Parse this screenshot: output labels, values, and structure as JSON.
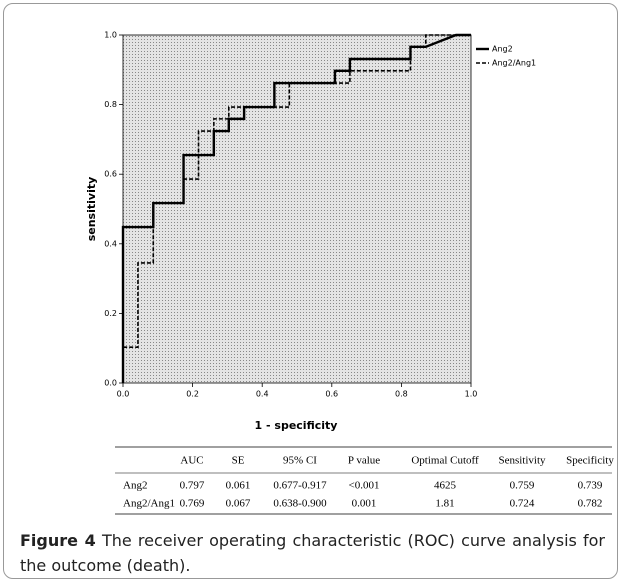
{
  "chart_data": {
    "type": "line",
    "xlabel": "1 - specificity",
    "ylabel": "sensitivity",
    "xlim": [
      0,
      1
    ],
    "ylim": [
      0,
      1
    ],
    "xticks": [
      {
        "value": 0,
        "label": "0.0"
      },
      {
        "value": 0.2,
        "label": "0.2"
      },
      {
        "value": 0.4,
        "label": "0.4"
      },
      {
        "value": 0.6,
        "label": "0.6"
      },
      {
        "value": 0.8,
        "label": "0.8"
      },
      {
        "value": 1,
        "label": "1.0"
      }
    ],
    "yticks": [
      {
        "value": 0,
        "label": "0.0"
      },
      {
        "value": 0.2,
        "label": "0.2"
      },
      {
        "value": 0.4,
        "label": "0.4"
      },
      {
        "value": 0.6,
        "label": "0.6"
      },
      {
        "value": 0.8,
        "label": "0.8"
      },
      {
        "value": 1,
        "label": "1.0"
      }
    ],
    "legend": "right",
    "series": [
      {
        "name": "Ang2",
        "color": "#000000",
        "dashed": false,
        "x": [
          0,
          0,
          0.087,
          0.087,
          0.174,
          0.174,
          0.261,
          0.261,
          0.304,
          0.304,
          0.348,
          0.348,
          0.435,
          0.435,
          0.609,
          0.609,
          0.652,
          0.652,
          0.826,
          0.826,
          0.87,
          0.957,
          1.0
        ],
        "values": [
          0,
          0.448,
          0.448,
          0.517,
          0.517,
          0.655,
          0.655,
          0.724,
          0.724,
          0.759,
          0.759,
          0.793,
          0.793,
          0.862,
          0.862,
          0.897,
          0.897,
          0.931,
          0.931,
          0.966,
          0.966,
          1.0,
          1.0
        ]
      },
      {
        "name": "Ang2/Ang1",
        "color": "#000000",
        "dashed": true,
        "x": [
          0,
          0,
          0.043,
          0.043,
          0.087,
          0.087,
          0.174,
          0.174,
          0.217,
          0.217,
          0.261,
          0.261,
          0.304,
          0.304,
          0.478,
          0.478,
          0.652,
          0.652,
          0.826,
          0.826,
          0.87,
          0.87,
          1.0
        ],
        "values": [
          0,
          0.103,
          0.103,
          0.345,
          0.345,
          0.517,
          0.517,
          0.586,
          0.586,
          0.724,
          0.724,
          0.759,
          0.759,
          0.793,
          0.793,
          0.862,
          0.862,
          0.897,
          0.897,
          0.966,
          0.966,
          1.0,
          1.0
        ]
      }
    ]
  },
  "table": {
    "header": [
      "AUC",
      "SE",
      "95% CI",
      "P value",
      "Optimal Cutoff",
      "Sensitivity",
      "Specificity"
    ],
    "rows": [
      [
        "Ang2",
        "0.797",
        "0.061",
        "0.677-0.917",
        "<0.001",
        "4625",
        "0.759",
        "0.739"
      ],
      [
        "Ang2/Ang1",
        "0.769",
        "0.067",
        "0.638-0.900",
        "0.001",
        "1.81",
        "0.724",
        "0.782"
      ]
    ]
  },
  "caption": {
    "label": "Figure 4",
    "text": "The receiver operating characteristic (ROC) curve analysis for the outcome (death)."
  }
}
